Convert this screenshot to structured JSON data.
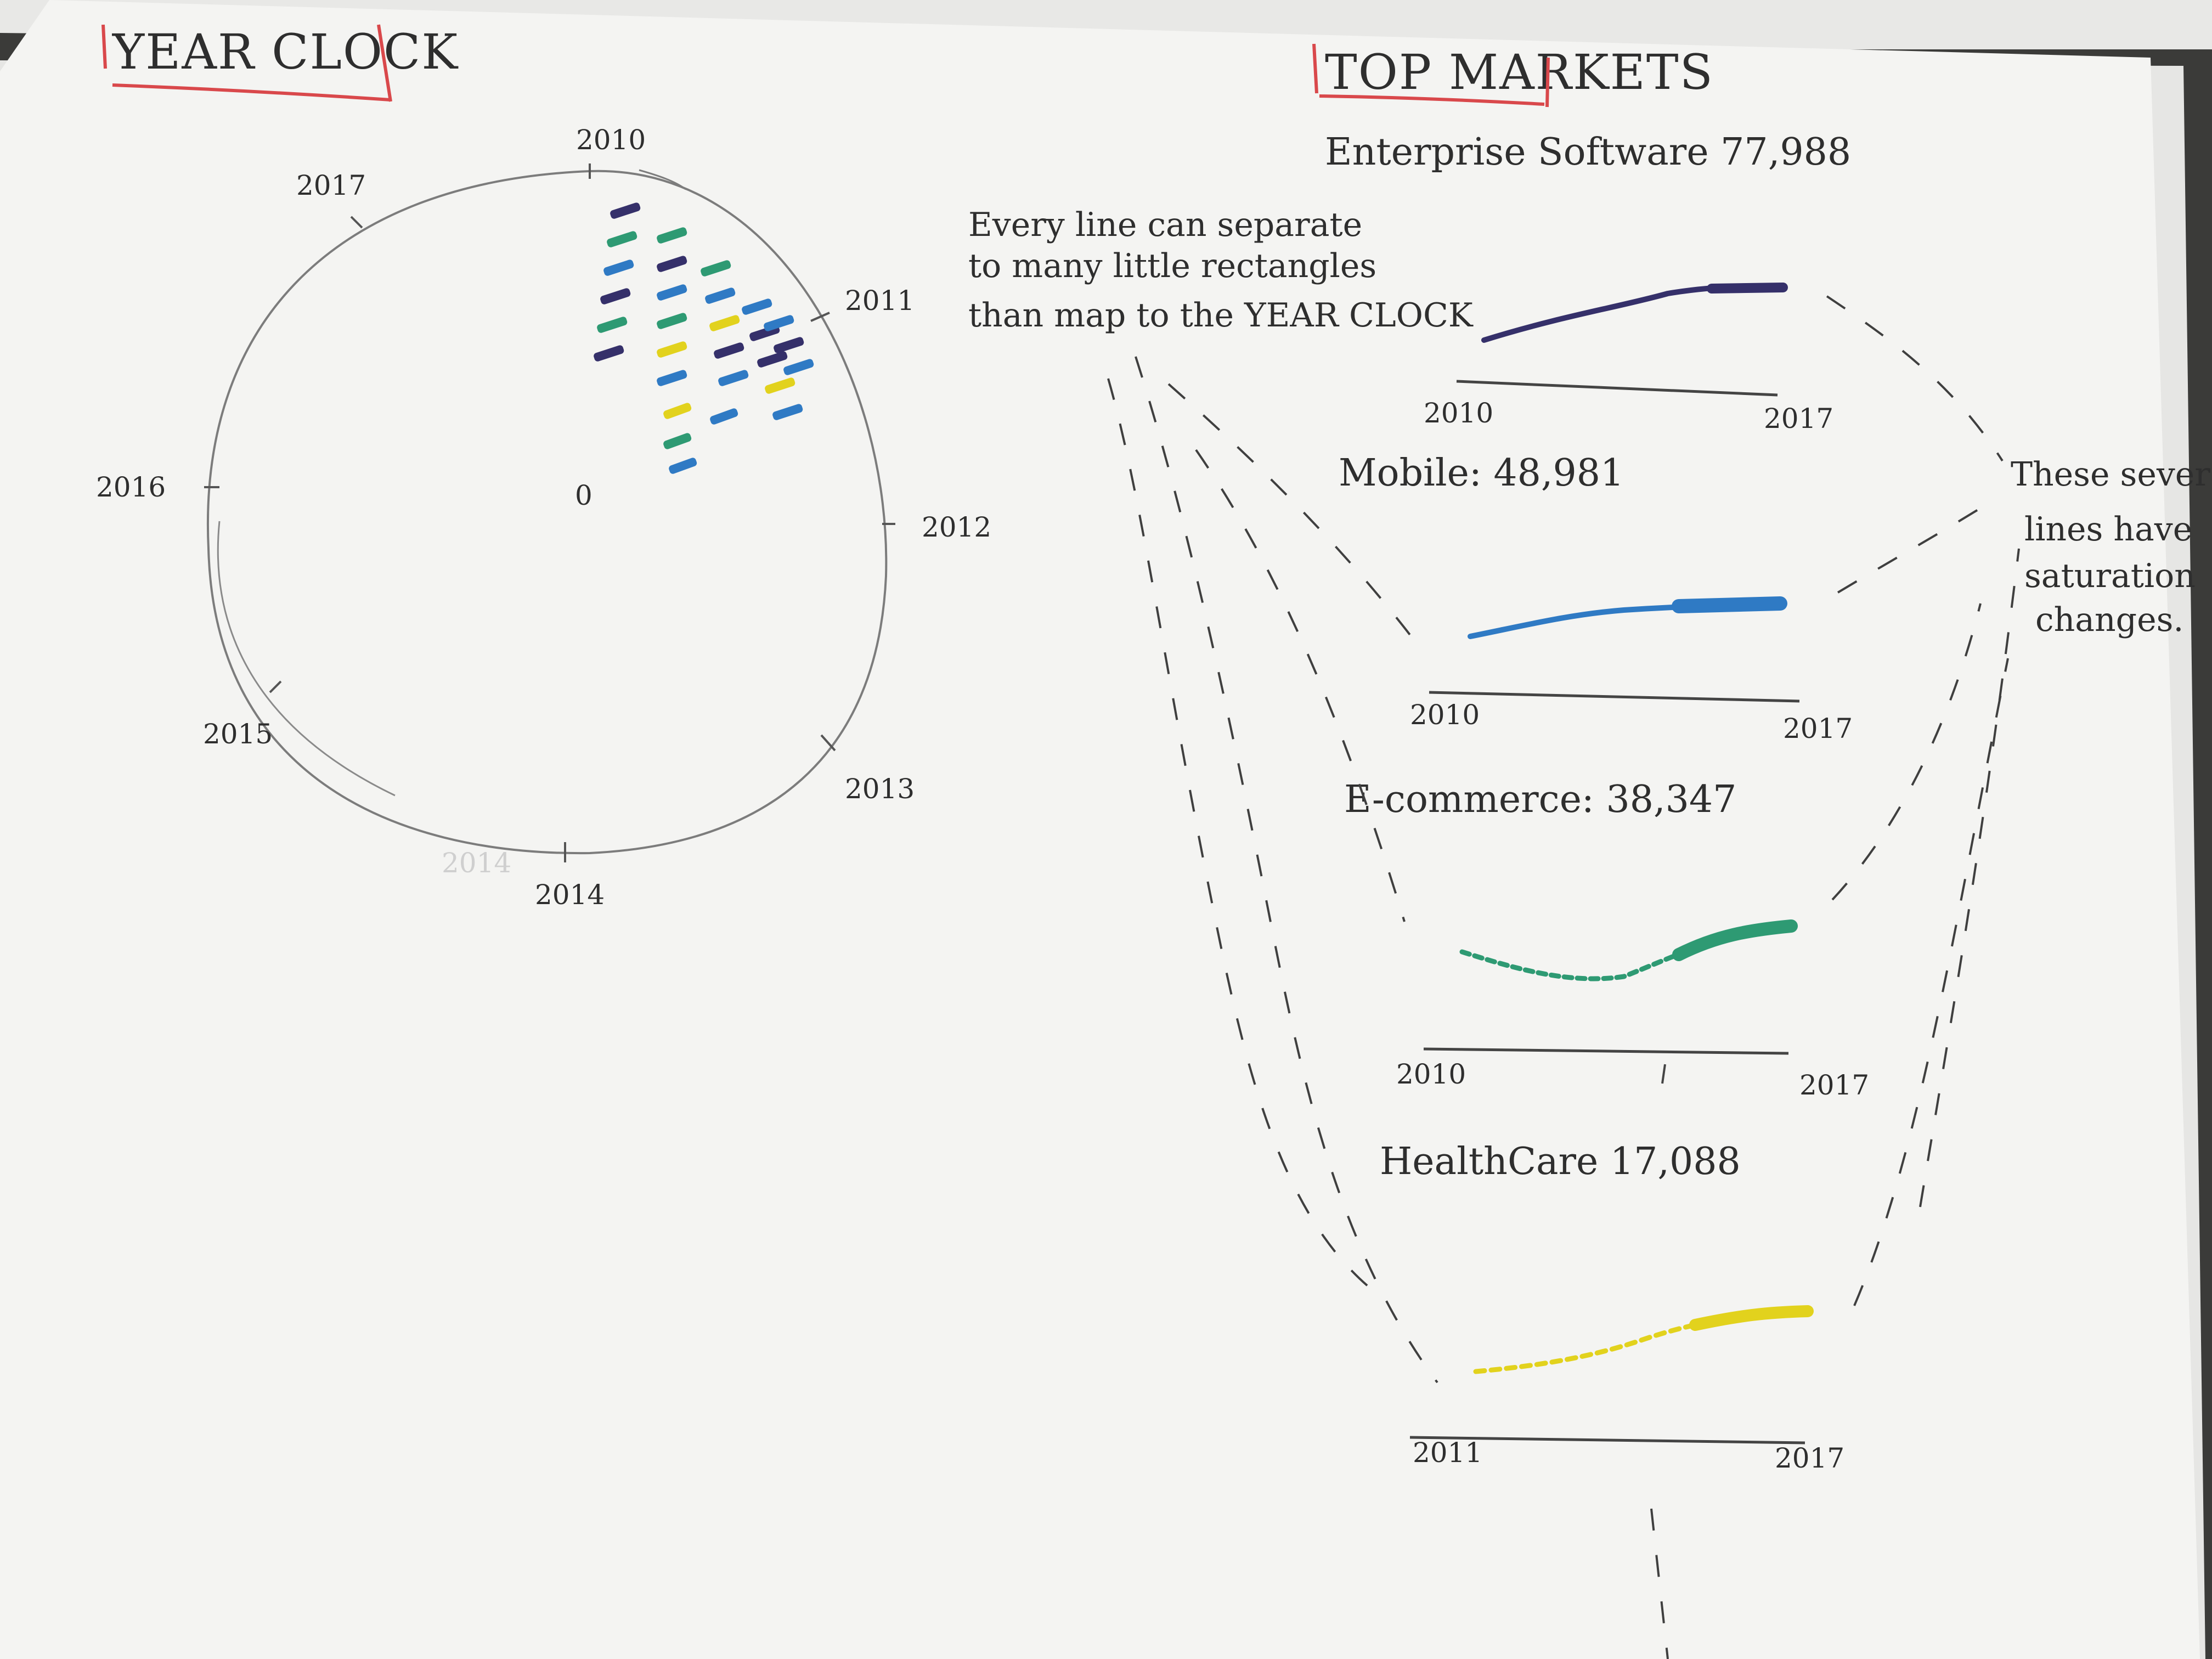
{
  "year_clock": {
    "title": "YEAR CLOCK",
    "center_label": "0",
    "years": [
      "2010",
      "2011",
      "2012",
      "2013",
      "2014",
      "2015",
      "2016",
      "2017"
    ],
    "faint_year": "2014"
  },
  "note_rectangles": {
    "lines": [
      "Every line can separate",
      "to many little rectangles",
      "than map to the YEAR CLOCK"
    ]
  },
  "top_markets": {
    "title": "TOP MARKETS",
    "markets": [
      {
        "label": "Enterprise Software 77,988",
        "axis_start": "2010",
        "axis_end": "2017",
        "color": "#35306a"
      },
      {
        "label": "Mobile: 48,981",
        "axis_start": "2010",
        "axis_end": "2017",
        "color": "#2f7ac4"
      },
      {
        "label": "E-commerce: 38,347",
        "axis_start": "2010",
        "axis_end": "2017",
        "color": "#2e9a73"
      },
      {
        "label": "HealthCare 17,088",
        "axis_start": "2011",
        "axis_end": "2017",
        "color": "#e2d21d"
      }
    ]
  },
  "note_saturation": {
    "lines": [
      "These several",
      "lines have",
      "saturation",
      "changes."
    ]
  },
  "colors": {
    "paper": "#f4f4f2",
    "pencil": "#777777",
    "ink": "#2e2e2e",
    "underline_red": "#d9484b"
  }
}
